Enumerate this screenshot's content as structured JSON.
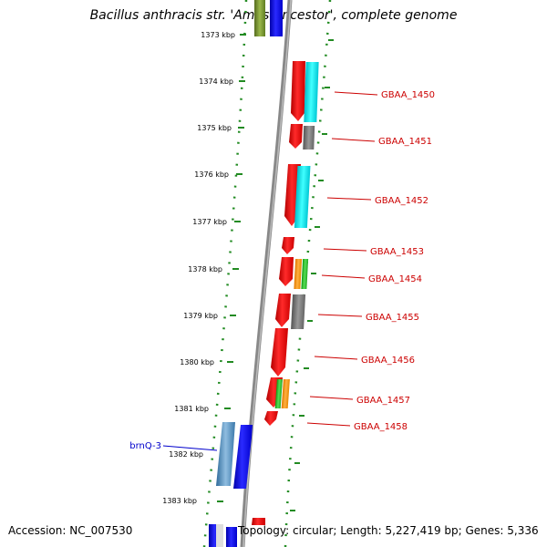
{
  "title": "Bacillus anthracis str. 'Ames Ancestor', complete genome",
  "accession": "Accession: NC_007530",
  "topology": "Topology: circular; Length: 5,227,419 bp; Genes: 5,336",
  "ticks": [
    "1373 kbp",
    "1374 kbp",
    "1375 kbp",
    "1376 kbp",
    "1377 kbp",
    "1378 kbp",
    "1379 kbp",
    "1380 kbp",
    "1381 kbp",
    "1382 kbp",
    "1383 kbp"
  ],
  "genes": [
    {
      "label": "GBAA_1450",
      "color": "#cc0000"
    },
    {
      "label": "GBAA_1451",
      "color": "#cc0000"
    },
    {
      "label": "GBAA_1452",
      "color": "#cc0000"
    },
    {
      "label": "GBAA_1453",
      "color": "#cc0000"
    },
    {
      "label": "GBAA_1454",
      "color": "#cc0000"
    },
    {
      "label": "GBAA_1455",
      "color": "#cc0000"
    },
    {
      "label": "GBAA_1456",
      "color": "#cc0000"
    },
    {
      "label": "GBAA_1457",
      "color": "#cc0000"
    },
    {
      "label": "GBAA_1458",
      "color": "#cc0000"
    },
    {
      "label": "brnQ-3",
      "color": "#0000cc"
    }
  ],
  "colors": {
    "cds_forward": "#ff0000",
    "cds_other": "#0000ff",
    "blast_cyan": "#00e5ee",
    "blast_gray": "#777777",
    "blast_orange": "#ff8c00",
    "blast_green": "#22bb22",
    "blast_steel": "#4682b4",
    "blast_olive": "#6b8e23",
    "backbone": "#888888",
    "ring_dots": "#228b22"
  }
}
